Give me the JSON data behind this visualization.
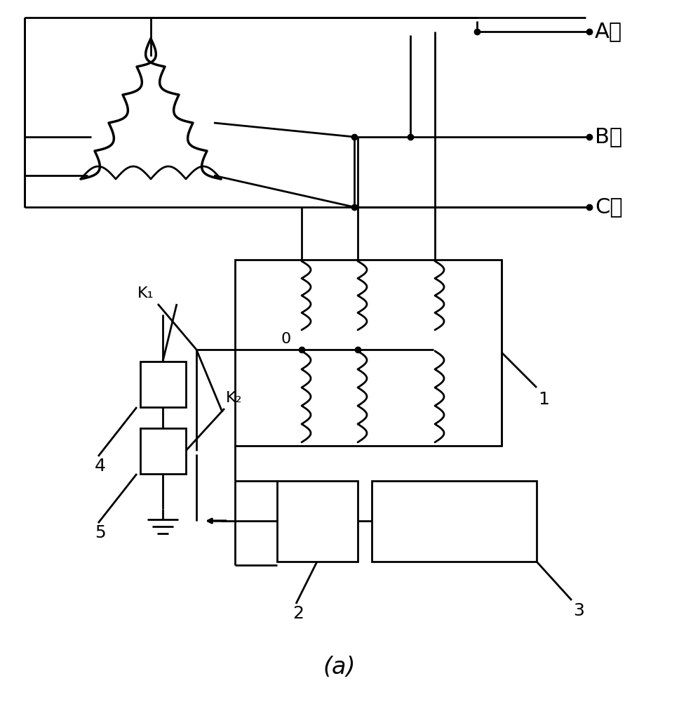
{
  "bg_color": "#ffffff",
  "line_color": "#000000",
  "lw": 2.0,
  "lw_thick": 2.5,
  "label_A": "A相",
  "label_B": "B相",
  "label_C": "C相",
  "label_caption": "(a)",
  "label_1": "1",
  "label_2": "2",
  "label_3": "3",
  "label_4": "4",
  "label_5": "5",
  "label_K1": "K₁",
  "label_K2": "K₂",
  "label_0": "0",
  "font_size": 20,
  "font_size_caption": 24
}
